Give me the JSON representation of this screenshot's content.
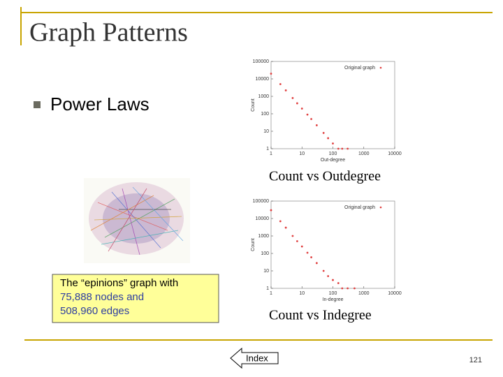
{
  "slide": {
    "title": "Graph Patterns",
    "bullet": "Power Laws",
    "captions": [
      "Count vs Outdegree",
      "Count vs Indegree"
    ],
    "note": [
      "The “epinions” graph with",
      "75,888 nodes and",
      "508,960 edges"
    ],
    "button": "Index",
    "page_number": "121"
  },
  "chart_data": [
    {
      "type": "scatter",
      "xlabel": "Out-degree",
      "ylabel": "Count",
      "xscale": "log",
      "yscale": "log",
      "xlim": [
        1,
        10000
      ],
      "ylim": [
        1,
        100000
      ],
      "xticks": [
        1,
        10,
        100,
        1000,
        10000
      ],
      "yticks": [
        1,
        10,
        100,
        1000,
        10000,
        100000
      ],
      "x": [
        1,
        2,
        3,
        5,
        7,
        10,
        15,
        20,
        30,
        50,
        70,
        100,
        150,
        200,
        300
      ],
      "series": [
        {
          "name": "Original graph",
          "color": "#e04040",
          "values": [
            20000,
            5000,
            2200,
            800,
            400,
            200,
            90,
            50,
            22,
            8,
            4,
            2,
            1,
            1,
            1
          ]
        }
      ]
    },
    {
      "type": "scatter",
      "xlabel": "In-degree",
      "ylabel": "Count",
      "xscale": "log",
      "yscale": "log",
      "xlim": [
        1,
        10000
      ],
      "ylim": [
        1,
        100000
      ],
      "xticks": [
        1,
        10,
        100,
        1000,
        10000
      ],
      "yticks": [
        1,
        10,
        100,
        1000,
        10000,
        100000
      ],
      "x": [
        1,
        2,
        3,
        5,
        7,
        10,
        15,
        20,
        30,
        50,
        70,
        100,
        150,
        200,
        300,
        500
      ],
      "series": [
        {
          "name": "Original graph",
          "color": "#e04040",
          "values": [
            30000,
            7000,
            3000,
            1000,
            500,
            250,
            110,
            60,
            28,
            10,
            5,
            3,
            2,
            1,
            1,
            1
          ]
        }
      ]
    }
  ]
}
